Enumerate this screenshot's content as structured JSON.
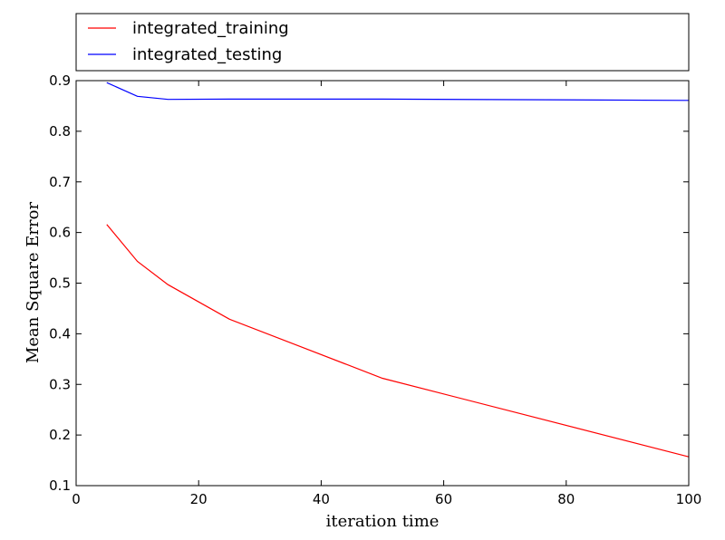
{
  "chart_data": {
    "type": "line",
    "title": "",
    "xlabel": "iteration time",
    "ylabel": "Mean Square Error",
    "xlim": [
      0,
      100
    ],
    "ylim": [
      0.1,
      0.9
    ],
    "xticks": [
      "0",
      "20",
      "40",
      "60",
      "80",
      "100"
    ],
    "yticks": [
      "0.1",
      "0.2",
      "0.3",
      "0.4",
      "0.5",
      "0.6",
      "0.7",
      "0.8",
      "0.9"
    ],
    "grid": false,
    "legend_position": "above plot",
    "series": [
      {
        "name": "integrated_training",
        "color": "#ff0000",
        "x": [
          5,
          10,
          15,
          25,
          50,
          100
        ],
        "y": [
          0.616,
          0.543,
          0.497,
          0.429,
          0.312,
          0.157
        ]
      },
      {
        "name": "integrated_testing",
        "color": "#0000ff",
        "x": [
          5,
          10,
          15,
          25,
          50,
          100
        ],
        "y": [
          0.896,
          0.869,
          0.863,
          0.8635,
          0.8635,
          0.861
        ]
      }
    ]
  }
}
